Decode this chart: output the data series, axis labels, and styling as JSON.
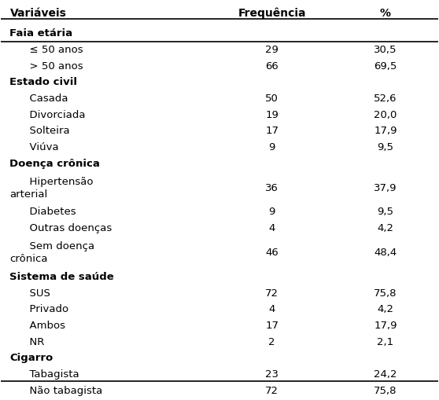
{
  "headers": [
    "Variáveis",
    "Frequência",
    "%"
  ],
  "rows": [
    {
      "label": "Faia etária",
      "freq": "",
      "pct": "",
      "bold": true,
      "indent": 0
    },
    {
      "label": "≤ 50 anos",
      "freq": "29",
      "pct": "30,5",
      "bold": false,
      "indent": 1
    },
    {
      "label": "> 50 anos",
      "freq": "66",
      "pct": "69,5",
      "bold": false,
      "indent": 1
    },
    {
      "label": "Estado civil",
      "freq": "",
      "pct": "",
      "bold": true,
      "indent": 0
    },
    {
      "label": "Casada",
      "freq": "50",
      "pct": "52,6",
      "bold": false,
      "indent": 1
    },
    {
      "label": "Divorciada",
      "freq": "19",
      "pct": "20,0",
      "bold": false,
      "indent": 1
    },
    {
      "label": "Solteira",
      "freq": "17",
      "pct": "17,9",
      "bold": false,
      "indent": 1
    },
    {
      "label": "Viúva",
      "freq": "9",
      "pct": "9,5",
      "bold": false,
      "indent": 1
    },
    {
      "label": "Doença crônica",
      "freq": "",
      "pct": "",
      "bold": true,
      "indent": 0
    },
    {
      "label": "Hipertensão\narterial",
      "freq": "36",
      "pct": "37,9",
      "bold": false,
      "indent": 1
    },
    {
      "label": "Diabetes",
      "freq": "9",
      "pct": "9,5",
      "bold": false,
      "indent": 1
    },
    {
      "label": "Outras doenças",
      "freq": "4",
      "pct": "4,2",
      "bold": false,
      "indent": 1
    },
    {
      "label": "Sem doença\ncrônica",
      "freq": "46",
      "pct": "48,4",
      "bold": false,
      "indent": 1
    },
    {
      "label": "Sistema de saúde",
      "freq": "",
      "pct": "",
      "bold": true,
      "indent": 0
    },
    {
      "label": "SUS",
      "freq": "72",
      "pct": "75,8",
      "bold": false,
      "indent": 1
    },
    {
      "label": "Privado",
      "freq": "4",
      "pct": "4,2",
      "bold": false,
      "indent": 1
    },
    {
      "label": "Ambos",
      "freq": "17",
      "pct": "17,9",
      "bold": false,
      "indent": 1
    },
    {
      "label": "NR",
      "freq": "2",
      "pct": "2,1",
      "bold": false,
      "indent": 1
    },
    {
      "label": "Cigarro",
      "freq": "",
      "pct": "",
      "bold": true,
      "indent": 0
    },
    {
      "label": "Tabagista",
      "freq": "23",
      "pct": "24,2",
      "bold": false,
      "indent": 1
    },
    {
      "label": "Não tabagista",
      "freq": "72",
      "pct": "75,8",
      "bold": false,
      "indent": 1
    }
  ],
  "bg_color": "#ffffff",
  "header_line_color": "#000000",
  "text_color": "#000000",
  "font_size": 9.5,
  "header_font_size": 10
}
